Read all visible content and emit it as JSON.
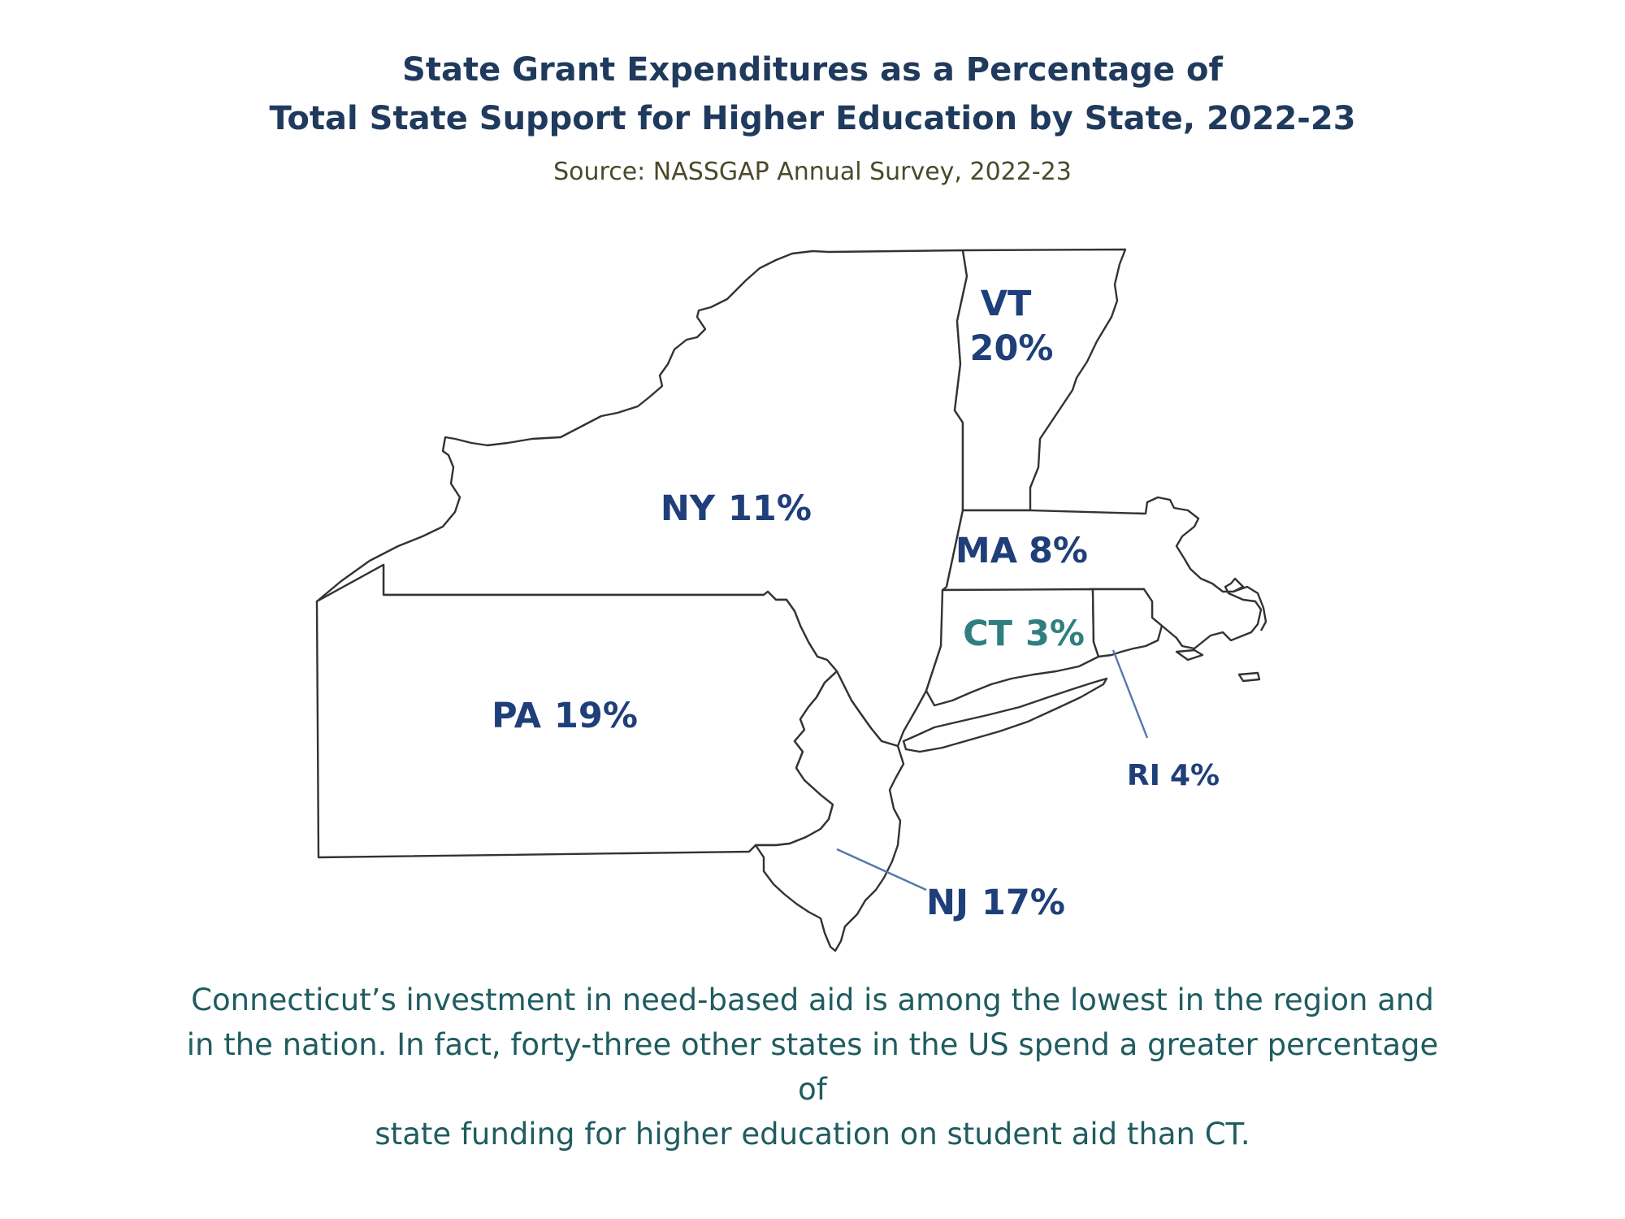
{
  "header": {
    "title_line1": "State Grant Expenditures as a Percentage of",
    "title_line2": "Total State Support for Higher Education by State, 2022-23",
    "source": "Source: NASSGAP Annual Survey, 2022-23"
  },
  "map": {
    "states": [
      {
        "abbr": "VT",
        "value_label": "20%",
        "value": 20
      },
      {
        "abbr": "NY",
        "value_label": "11%",
        "value": 11
      },
      {
        "abbr": "MA",
        "value_label": "8%",
        "value": 8
      },
      {
        "abbr": "CT",
        "value_label": "3%",
        "value": 3
      },
      {
        "abbr": "PA",
        "value_label": "19%",
        "value": 19
      },
      {
        "abbr": "RI",
        "value_label": "4%",
        "value": 4
      },
      {
        "abbr": "NJ",
        "value_label": "17%",
        "value": 17
      }
    ],
    "colors": {
      "label": "#1f3f7a",
      "highlight_label": "#2f7f80",
      "border": "#333333",
      "leader_line": "#5577aa"
    }
  },
  "caption": {
    "line1": "Connecticut’s investment in need-based aid is among the lowest in the region and",
    "line2": "in the nation. In fact, forty-three other states in the US spend a greater percentage of",
    "line3": "state funding for higher education on student aid than CT."
  }
}
